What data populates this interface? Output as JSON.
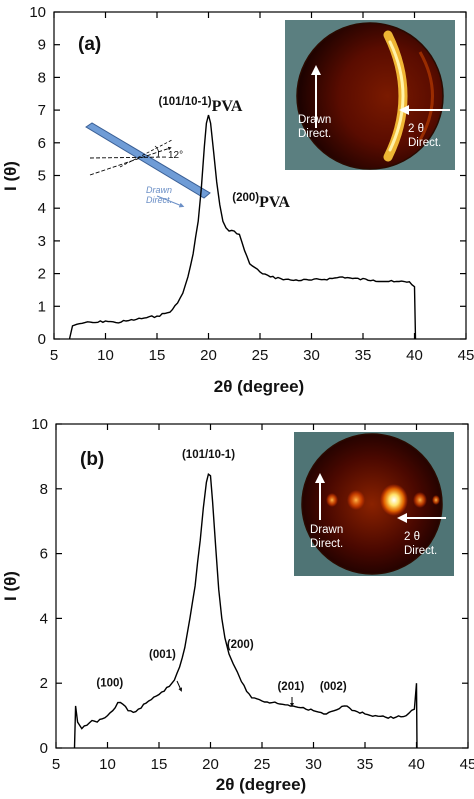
{
  "chart_data": [
    {
      "type": "line",
      "panel": "(a)",
      "xlabel": "2θ (degree)",
      "ylabel": "I (θ)",
      "xlim": [
        5,
        45
      ],
      "ylim": [
        0,
        10
      ],
      "xticks": [
        5,
        10,
        15,
        20,
        25,
        30,
        35,
        40,
        45
      ],
      "yticks": [
        0,
        1,
        2,
        3,
        4,
        5,
        6,
        7,
        8,
        9,
        10
      ],
      "grid": false,
      "series": [
        {
          "color": "#000000",
          "x": [
            6.5,
            6.8,
            7.2,
            8,
            9,
            10,
            11,
            12,
            13,
            14,
            15,
            16,
            16.5,
            17,
            17.5,
            18,
            18.5,
            19,
            19.3,
            19.6,
            19.8,
            20,
            20.2,
            20.5,
            20.8,
            21.1,
            21.4,
            21.7,
            22,
            22.5,
            23,
            23.5,
            24,
            25,
            26,
            27,
            28,
            30,
            32,
            33,
            34,
            36,
            38,
            39.5,
            40,
            40.1
          ],
          "y": [
            0,
            0.4,
            0.45,
            0.5,
            0.5,
            0.55,
            0.5,
            0.55,
            0.6,
            0.65,
            0.7,
            0.8,
            0.9,
            1.1,
            1.4,
            1.9,
            2.6,
            3.6,
            4.6,
            5.9,
            6.6,
            6.85,
            6.6,
            5.7,
            4.8,
            4.1,
            3.6,
            3.4,
            3.3,
            3.3,
            3.2,
            2.7,
            2.3,
            2.05,
            1.9,
            1.85,
            1.8,
            1.8,
            1.85,
            1.9,
            1.85,
            1.8,
            1.75,
            1.75,
            1.6,
            0
          ]
        }
      ],
      "annotations": [
        {
          "text": "(101/10-1)",
          "subscript": "PVA",
          "x": 20,
          "y": 6.85
        },
        {
          "text": "(200)",
          "subscript": "PVA",
          "x": 22.5,
          "y": 3.3
        }
      ],
      "schematic": {
        "angle_label": "12°",
        "arrow_label_line1": "Drawn",
        "arrow_label_line2": "Direct."
      },
      "inset": {
        "label_drawn_line1": "Drawn",
        "label_drawn_line2": "Direct.",
        "label_2theta_line1": "2 θ",
        "label_2theta_line2": "Direct."
      }
    },
    {
      "type": "line",
      "panel": "(b)",
      "xlabel": "2θ (degree)",
      "ylabel": "I (θ)",
      "xlim": [
        5,
        45
      ],
      "ylim": [
        0,
        10
      ],
      "xticks": [
        5,
        10,
        15,
        20,
        25,
        30,
        35,
        40,
        45
      ],
      "yticks": [
        0,
        2,
        4,
        6,
        8,
        10
      ],
      "grid": false,
      "series": [
        {
          "color": "#000000",
          "x": [
            6.8,
            6.9,
            7.1,
            7.5,
            8,
            8.5,
            9,
            9.5,
            10,
            10.5,
            11,
            11.5,
            12,
            12.5,
            13,
            14,
            15,
            16,
            16.5,
            17,
            17.5,
            18,
            18.5,
            19,
            19.3,
            19.6,
            19.8,
            20,
            20.2,
            20.5,
            20.8,
            21.1,
            21.4,
            21.8,
            22.2,
            22.6,
            23,
            23.5,
            24,
            25,
            26,
            27,
            28,
            29,
            30,
            31,
            32,
            33,
            34,
            35,
            36,
            37,
            38,
            39,
            39.8,
            40,
            40.05
          ],
          "y": [
            0,
            1.3,
            0.8,
            0.6,
            0.7,
            0.85,
            0.8,
            0.9,
            1.0,
            1.15,
            1.4,
            1.35,
            1.15,
            1.1,
            1.2,
            1.45,
            1.65,
            1.9,
            2.1,
            2.5,
            3.1,
            4.0,
            5.0,
            6.4,
            7.4,
            8.2,
            8.45,
            8.4,
            7.6,
            6.2,
            4.9,
            4.0,
            3.4,
            2.9,
            2.6,
            2.35,
            2.05,
            1.75,
            1.55,
            1.45,
            1.4,
            1.35,
            1.3,
            1.25,
            1.15,
            1.05,
            1.15,
            1.3,
            1.15,
            1.05,
            1.0,
            0.95,
            0.95,
            1.0,
            1.2,
            2.0,
            0
          ]
        }
      ],
      "annotations": [
        {
          "text": "(101/10-1)",
          "x": 20,
          "y": 8.45
        },
        {
          "text": "(200)",
          "x": 22.5,
          "y": 2.6
        },
        {
          "text": "(001)",
          "x": 16.5,
          "y": 2.1
        },
        {
          "text": "(100)",
          "x": 11,
          "y": 1.4
        },
        {
          "text": "(201)",
          "x": 28,
          "y": 1.3
        },
        {
          "text": "(002)",
          "x": 32.5,
          "y": 1.3
        }
      ],
      "inset": {
        "label_drawn_line1": "Drawn",
        "label_drawn_line2": "Direct.",
        "label_2theta_line1": "2 θ",
        "label_2theta_line2": "Direct."
      }
    }
  ]
}
